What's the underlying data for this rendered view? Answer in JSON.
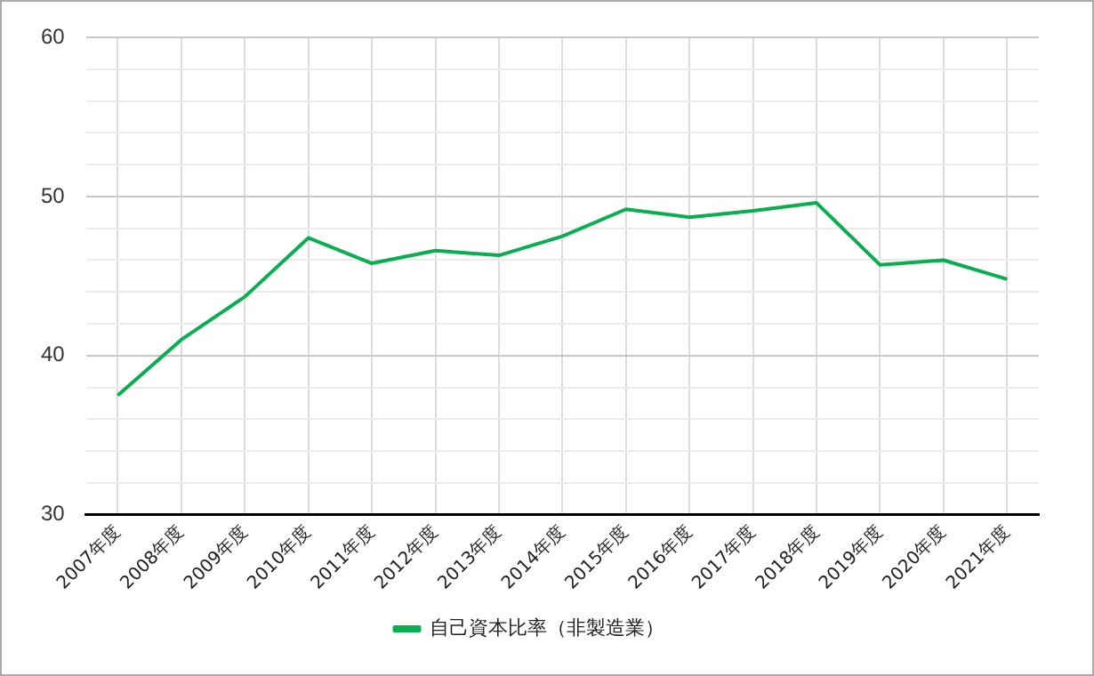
{
  "chart_data": {
    "type": "line",
    "categories": [
      "2007年度",
      "2008年度",
      "2009年度",
      "2010年度",
      "2011年度",
      "2012年度",
      "2013年度",
      "2014年度",
      "2015年度",
      "2016年度",
      "2017年度",
      "2018年度",
      "2019年度",
      "2020年度",
      "2021年度"
    ],
    "series": [
      {
        "name": "自己資本比率（非製造業）",
        "color": "#0aae50",
        "values": [
          37.5,
          41.0,
          43.7,
          47.4,
          45.8,
          46.6,
          46.3,
          47.5,
          49.2,
          48.7,
          49.1,
          49.6,
          45.7,
          46.0,
          44.8
        ]
      }
    ],
    "ylim": [
      30,
      60
    ],
    "yticks": [
      30,
      {
        "value": 32,
        "label": null
      },
      {
        "value": 34,
        "label": null
      },
      {
        "value": 36,
        "label": null
      },
      {
        "value": 38,
        "label": null
      },
      40,
      {
        "value": 42,
        "label": null
      },
      {
        "value": 44,
        "label": null
      },
      {
        "value": 46,
        "label": null
      },
      {
        "value": 48,
        "label": null
      },
      50,
      {
        "value": 52,
        "label": null
      },
      {
        "value": 54,
        "label": null
      },
      {
        "value": 56,
        "label": null
      },
      {
        "value": 58,
        "label": null
      },
      60
    ],
    "grid": true,
    "legend": "bottom",
    "marker": "none",
    "line_style": "solid"
  }
}
